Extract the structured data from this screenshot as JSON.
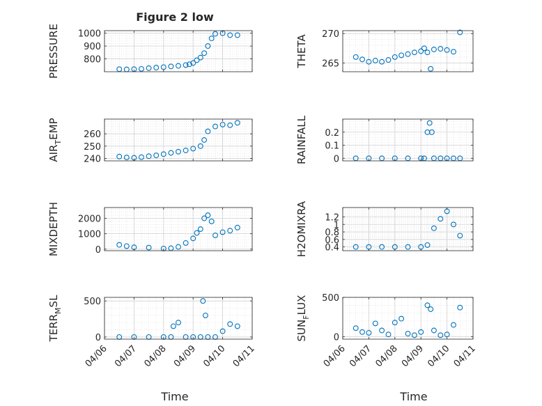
{
  "figure": {
    "title": "Figure 2 low",
    "xlabel": "Time",
    "marker_color": "#0072BD",
    "grid": true,
    "minor_grid": true
  },
  "chart_data": [
    {
      "type": "scatter",
      "ylabel": "PRESSURE",
      "xlim": [
        "2023-04-06",
        "2023-04-11"
      ],
      "ylim": [
        700,
        1020
      ],
      "yticks": [
        800,
        900,
        1000
      ],
      "yticklabels": [
        "800",
        "900",
        "1000"
      ],
      "x": [
        "04/06 12:00",
        "04/06 18:00",
        "04/07 00:00",
        "04/07 06:00",
        "04/07 12:00",
        "04/07 18:00",
        "04/08 00:00",
        "04/08 06:00",
        "04/08 12:00",
        "04/08 18:00",
        "04/08 21:00",
        "04/09 00:00",
        "04/09 03:00",
        "04/09 06:00",
        "04/09 09:00",
        "04/09 12:00",
        "04/09 15:00",
        "04/09 18:00",
        "04/10 00:00",
        "04/10 06:00",
        "04/10 12:00"
      ],
      "y": [
        720,
        718,
        720,
        722,
        728,
        732,
        736,
        742,
        746,
        752,
        758,
        768,
        790,
        810,
        845,
        900,
        960,
        995,
        1000,
        985,
        985
      ]
    },
    {
      "type": "scatter",
      "ylabel": "THETA",
      "xlim": [
        "2023-04-06",
        "2023-04-11"
      ],
      "ylim": [
        263.5,
        270.5
      ],
      "yticks": [
        265,
        270
      ],
      "yticklabels": [
        "265",
        "270"
      ],
      "x": [
        "04/06 12:00",
        "04/06 18:00",
        "04/07 00:00",
        "04/07 06:00",
        "04/07 12:00",
        "04/07 18:00",
        "04/08 00:00",
        "04/08 06:00",
        "04/08 12:00",
        "04/08 18:00",
        "04/09 00:00",
        "04/09 03:00",
        "04/09 06:00",
        "04/09 09:00",
        "04/09 12:00",
        "04/09 18:00",
        "04/10 00:00",
        "04/10 06:00",
        "04/10 12:00"
      ],
      "y": [
        266,
        265.6,
        265.2,
        265.4,
        265.2,
        265.5,
        266,
        266.3,
        266.5,
        266.8,
        267,
        267.5,
        266.8,
        264,
        267.3,
        267.4,
        267.2,
        266.9,
        270.2
      ]
    },
    {
      "type": "scatter",
      "ylabel": "AIR_TEMP",
      "ylabel_parts": [
        "AIR",
        "T",
        "EMP"
      ],
      "xlim": [
        "2023-04-06",
        "2023-04-11"
      ],
      "ylim": [
        238,
        272
      ],
      "yticks": [
        240,
        250,
        260
      ],
      "yticklabels": [
        "240",
        "250",
        "260"
      ],
      "x": [
        "04/06 12:00",
        "04/06 18:00",
        "04/07 00:00",
        "04/07 06:00",
        "04/07 12:00",
        "04/07 18:00",
        "04/08 00:00",
        "04/08 06:00",
        "04/08 12:00",
        "04/08 18:00",
        "04/09 00:00",
        "04/09 06:00",
        "04/09 09:00",
        "04/09 12:00",
        "04/09 18:00",
        "04/10 00:00",
        "04/10 06:00",
        "04/10 12:00"
      ],
      "y": [
        241.5,
        240.8,
        240.5,
        241,
        241.8,
        242.5,
        243.5,
        244.5,
        245.5,
        246.5,
        248,
        250,
        255,
        262,
        266,
        267.5,
        267,
        269
      ]
    },
    {
      "type": "scatter",
      "ylabel": "RAINFALL",
      "xlim": [
        "2023-04-06",
        "2023-04-11"
      ],
      "ylim": [
        -0.02,
        0.3
      ],
      "yticks": [
        0,
        0.1,
        0.2
      ],
      "yticklabels": [
        "0",
        "0.1",
        "0.2"
      ],
      "x": [
        "04/06 12:00",
        "04/07 00:00",
        "04/07 12:00",
        "04/08 00:00",
        "04/08 12:00",
        "04/09 00:00",
        "04/09 03:00",
        "04/09 06:00",
        "04/09 08:00",
        "04/09 10:00",
        "04/09 12:00",
        "04/09 18:00",
        "04/10 00:00",
        "04/10 06:00",
        "04/10 12:00"
      ],
      "y": [
        0,
        0,
        0,
        0,
        0,
        0,
        0,
        0.2,
        0.27,
        0.2,
        0,
        0,
        0,
        0,
        0
      ]
    },
    {
      "type": "scatter",
      "ylabel": "MIXDEPTH",
      "xlim": [
        "2023-04-06",
        "2023-04-11"
      ],
      "ylim": [
        -100,
        2700
      ],
      "yticks": [
        0,
        1000,
        2000
      ],
      "yticklabels": [
        "0",
        "1000",
        "2000"
      ],
      "x": [
        "04/06 12:00",
        "04/06 18:00",
        "04/07 00:00",
        "04/07 12:00",
        "04/08 00:00",
        "04/08 06:00",
        "04/08 12:00",
        "04/08 18:00",
        "04/09 00:00",
        "04/09 03:00",
        "04/09 06:00",
        "04/09 09:00",
        "04/09 12:00",
        "04/09 15:00",
        "04/09 18:00",
        "04/10 00:00",
        "04/10 06:00",
        "04/10 12:00"
      ],
      "y": [
        280,
        200,
        120,
        100,
        40,
        60,
        150,
        400,
        700,
        1050,
        1300,
        2000,
        2200,
        1800,
        900,
        1100,
        1200,
        1400
      ]
    },
    {
      "type": "scatter",
      "ylabel": "H2OMIXRA",
      "xlim": [
        "2023-04-06",
        "2023-04-11"
      ],
      "ylim": [
        0.3,
        1.45
      ],
      "yticks": [
        0.4,
        0.6,
        0.8,
        1,
        1.2
      ],
      "yticklabels": [
        "0.4",
        "0.6",
        "0.8",
        "1",
        "1.2"
      ],
      "x": [
        "04/06 12:00",
        "04/07 00:00",
        "04/07 12:00",
        "04/08 00:00",
        "04/08 12:00",
        "04/09 00:00",
        "04/09 06:00",
        "04/09 12:00",
        "04/09 18:00",
        "04/10 00:00",
        "04/10 06:00",
        "04/10 12:00"
      ],
      "y": [
        0.4,
        0.4,
        0.4,
        0.4,
        0.4,
        0.4,
        0.45,
        0.9,
        1.15,
        1.35,
        1.0,
        0.7
      ]
    },
    {
      "type": "scatter",
      "ylabel": "TERR_MSL",
      "ylabel_parts": [
        "TERR",
        "M",
        "SL"
      ],
      "xlim": [
        "2023-04-06",
        "2023-04-11"
      ],
      "ylim": [
        -30,
        550
      ],
      "yticks": [
        0,
        500
      ],
      "yticklabels": [
        "0",
        "500"
      ],
      "x": [
        "04/06 12:00",
        "04/07 00:00",
        "04/07 12:00",
        "04/08 00:00",
        "04/08 06:00",
        "04/08 08:00",
        "04/08 12:00",
        "04/08 18:00",
        "04/09 00:00",
        "04/09 06:00",
        "04/09 08:00",
        "04/09 10:00",
        "04/09 12:00",
        "04/09 18:00",
        "04/10 00:00",
        "04/10 06:00",
        "04/10 12:00"
      ],
      "y": [
        0,
        0,
        0,
        0,
        0,
        150,
        200,
        0,
        0,
        0,
        500,
        300,
        0,
        0,
        80,
        180,
        150
      ]
    },
    {
      "type": "scatter",
      "ylabel": "SUN_FLUX",
      "ylabel_parts": [
        "SUN",
        "F",
        "LUX"
      ],
      "xlim": [
        "2023-04-06",
        "2023-04-11"
      ],
      "ylim": [
        -30,
        500
      ],
      "yticks": [
        0,
        500
      ],
      "yticklabels": [
        "0",
        "500"
      ],
      "x": [
        "04/06 12:00",
        "04/06 18:00",
        "04/07 00:00",
        "04/07 06:00",
        "04/07 12:00",
        "04/07 18:00",
        "04/08 00:00",
        "04/08 06:00",
        "04/08 12:00",
        "04/08 18:00",
        "04/09 00:00",
        "04/09 06:00",
        "04/09 09:00",
        "04/09 12:00",
        "04/09 18:00",
        "04/10 00:00",
        "04/10 06:00",
        "04/10 12:00"
      ],
      "y": [
        110,
        60,
        50,
        170,
        80,
        30,
        180,
        230,
        40,
        20,
        60,
        400,
        350,
        80,
        20,
        30,
        150,
        370
      ]
    }
  ],
  "xaxis": {
    "ticks": [
      "2023-04-06",
      "2023-04-07",
      "2023-04-08",
      "2023-04-09",
      "2023-04-10",
      "2023-04-11"
    ],
    "ticklabels": [
      "04/06",
      "04/07",
      "04/08",
      "04/09",
      "04/10",
      "04/11"
    ]
  }
}
